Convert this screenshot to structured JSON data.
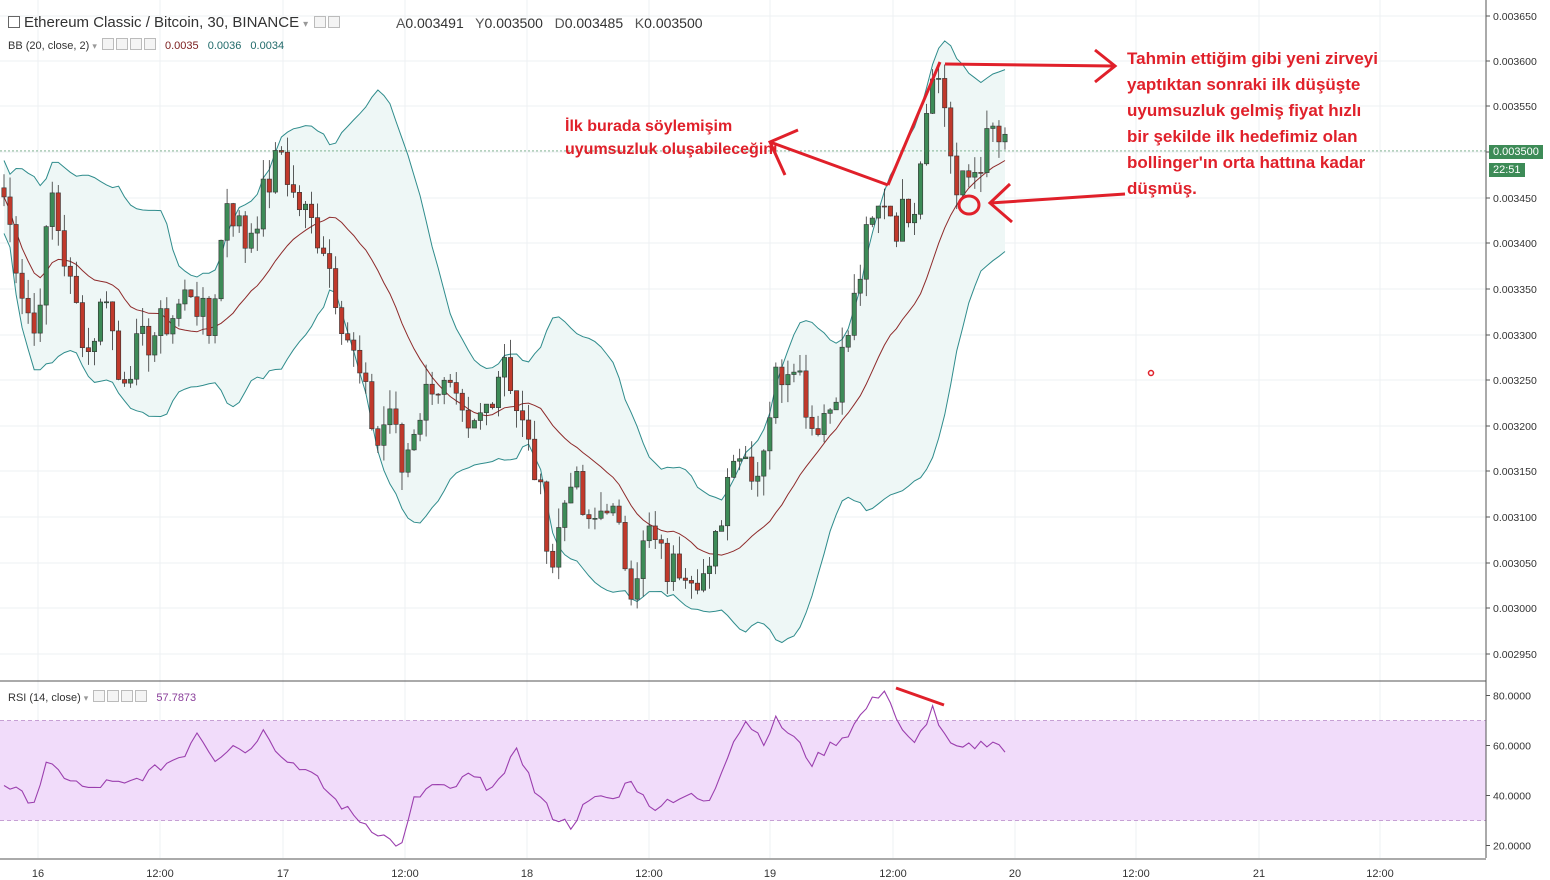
{
  "header": {
    "symbol": "Ethereum Classic / Bitcoin, 30, BINANCE",
    "ohlc": [
      {
        "k": "A",
        "v": "0.003491"
      },
      {
        "k": "Y",
        "v": "0.003500"
      },
      {
        "k": "D",
        "v": "0.003485"
      },
      {
        "k": "K",
        "v": "0.003500"
      }
    ]
  },
  "bb_legend": {
    "label": "BB (20, close, 2)",
    "v1": "0.0035",
    "v2": "0.0036",
    "v3": "0.0034"
  },
  "rsi_legend": {
    "label": "RSI (14, close)",
    "value": "57.7873"
  },
  "annotations": {
    "note1": "İlk burada söylemişim uyumsuzluk oluşabileceğini",
    "note2": "Tahmin ettiğim gibi yeni zirveyi yaptıktan sonraki ilk düşüşte uyumsuzluk gelmiş fiyat hızlı bir şekilde ilk hedefimiz olan bollinger'ın orta hattına kadar düşmüş."
  },
  "price_axis": {
    "last_price": "0.003500",
    "countdown": "22:51"
  },
  "colors": {
    "up": "#3d8b57",
    "down": "#c0392b",
    "band_fill": "#eef7f6",
    "band_line": "#2f8c8c",
    "basis": "#8e2a2a",
    "rsi_line": "#9b3fae",
    "rsi_band": "#f1dcfa",
    "annotation": "#e0202a"
  },
  "chart_data": [
    {
      "type": "candlestick",
      "title": "Ethereum Classic / Bitcoin, 30, BINANCE",
      "x_ticks": [
        "16",
        "12:00",
        "17",
        "12:00",
        "18",
        "12:00",
        "19",
        "12:00",
        "20",
        "12:00",
        "21",
        "12:00"
      ],
      "y_ticks": [
        "0.003650",
        "0.003600",
        "0.003550",
        "0.003500",
        "0.003450",
        "0.003400",
        "0.003350",
        "0.003300",
        "0.003250",
        "0.003200",
        "0.003150",
        "0.003100",
        "0.003050",
        "0.003000",
        "0.002950"
      ],
      "ylim": [
        0.00292,
        0.00366
      ],
      "close_anchors": [
        [
          0,
          0.00345
        ],
        [
          3,
          0.00335
        ],
        [
          5,
          0.0033
        ],
        [
          8,
          0.00345
        ],
        [
          11,
          0.00335
        ],
        [
          14,
          0.00328
        ],
        [
          17,
          0.00335
        ],
        [
          19,
          0.00325
        ],
        [
          22,
          0.00328
        ],
        [
          25,
          0.0033
        ],
        [
          28,
          0.00332
        ],
        [
          31,
          0.00335
        ],
        [
          34,
          0.0033
        ],
        [
          37,
          0.00345
        ],
        [
          40,
          0.0034
        ],
        [
          43,
          0.00345
        ],
        [
          46,
          0.0035
        ],
        [
          48,
          0.00345
        ],
        [
          50,
          0.00343
        ],
        [
          53,
          0.0034
        ],
        [
          56,
          0.00332
        ],
        [
          59,
          0.00325
        ],
        [
          62,
          0.00318
        ],
        [
          64,
          0.00322
        ],
        [
          66,
          0.00315
        ],
        [
          68,
          0.0032
        ],
        [
          71,
          0.00325
        ],
        [
          74,
          0.00323
        ],
        [
          77,
          0.00318
        ],
        [
          80,
          0.00322
        ],
        [
          83,
          0.00328
        ],
        [
          85,
          0.00322
        ],
        [
          88,
          0.00315
        ],
        [
          91,
          0.00305
        ],
        [
          94,
          0.00315
        ],
        [
          97,
          0.00308
        ],
        [
          100,
          0.00312
        ],
        [
          104,
          0.00303
        ],
        [
          107,
          0.00308
        ],
        [
          110,
          0.00304
        ],
        [
          113,
          0.00305
        ],
        [
          117,
          0.00303
        ],
        [
          121,
          0.00318
        ],
        [
          125,
          0.00315
        ],
        [
          128,
          0.00325
        ],
        [
          131,
          0.00328
        ],
        [
          134,
          0.0032
        ],
        [
          137,
          0.00322
        ],
        [
          140,
          0.0033
        ],
        [
          143,
          0.0034
        ],
        [
          146,
          0.00345
        ],
        [
          148,
          0.00342
        ],
        [
          151,
          0.00345
        ],
        [
          154,
          0.0036
        ],
        [
          156,
          0.00355
        ],
        [
          158,
          0.00345
        ],
        [
          161,
          0.00348
        ],
        [
          164,
          0.00352
        ],
        [
          166,
          0.0035
        ]
      ],
      "rsi": {
        "ylim": [
          15,
          85
        ],
        "y_ticks": [
          "80.0000",
          "60.0000",
          "40.0000",
          "20.0000"
        ],
        "band": [
          30,
          70
        ],
        "anchors": [
          [
            0,
            45
          ],
          [
            3,
            40
          ],
          [
            5,
            38
          ],
          [
            7,
            52
          ],
          [
            10,
            48
          ],
          [
            14,
            42
          ],
          [
            17,
            45
          ],
          [
            20,
            44
          ],
          [
            24,
            49
          ],
          [
            27,
            53
          ],
          [
            30,
            57
          ],
          [
            32,
            66
          ],
          [
            35,
            55
          ],
          [
            38,
            60
          ],
          [
            41,
            58
          ],
          [
            43,
            68
          ],
          [
            46,
            55
          ],
          [
            49,
            52
          ],
          [
            52,
            46
          ],
          [
            55,
            38
          ],
          [
            58,
            32
          ],
          [
            61,
            27
          ],
          [
            64,
            22
          ],
          [
            66,
            20
          ],
          [
            68,
            38
          ],
          [
            71,
            44
          ],
          [
            74,
            42
          ],
          [
            77,
            48
          ],
          [
            80,
            44
          ],
          [
            83,
            47
          ],
          [
            85,
            60
          ],
          [
            88,
            42
          ],
          [
            91,
            32
          ],
          [
            94,
            28
          ],
          [
            96,
            35
          ],
          [
            99,
            40
          ],
          [
            101,
            38
          ],
          [
            104,
            47
          ],
          [
            107,
            35
          ],
          [
            110,
            38
          ],
          [
            113,
            40
          ],
          [
            117,
            37
          ],
          [
            121,
            63
          ],
          [
            123,
            70
          ],
          [
            126,
            62
          ],
          [
            128,
            70
          ],
          [
            131,
            63
          ],
          [
            134,
            53
          ],
          [
            137,
            60
          ],
          [
            140,
            65
          ],
          [
            143,
            75
          ],
          [
            146,
            83
          ],
          [
            149,
            65
          ],
          [
            151,
            60
          ],
          [
            154,
            75
          ],
          [
            156,
            63
          ],
          [
            158,
            58
          ],
          [
            161,
            60
          ],
          [
            164,
            62
          ],
          [
            166,
            58
          ]
        ]
      }
    }
  ]
}
